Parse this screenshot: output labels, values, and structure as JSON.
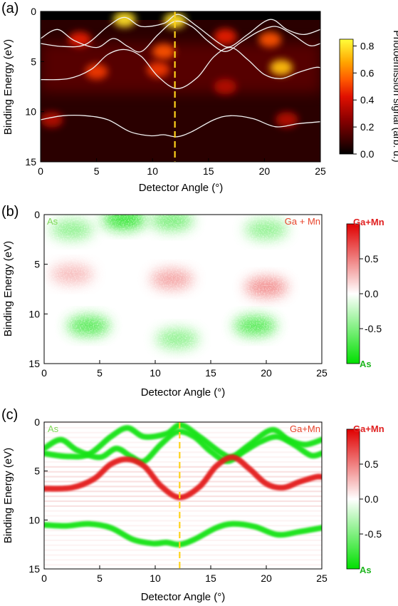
{
  "chart_data": [
    {
      "panel_label": "(a)",
      "type": "heatmap",
      "xlabel": "Detector Angle (°)",
      "ylabel": "Binding Energy (eV)",
      "xlim": [
        0,
        25
      ],
      "ylim": [
        15,
        0
      ],
      "x_ticks": [
        "0",
        "5",
        "10",
        "15",
        "20",
        "25"
      ],
      "y_ticks": [
        "0",
        "5",
        "10",
        "15"
      ],
      "colorbar": {
        "label": "Photoemission signal (arb. u.)",
        "ticks": [
          "0.0",
          "0.2",
          "0.4",
          "0.6",
          "0.8"
        ],
        "range": [
          0,
          0.85
        ],
        "colormap": [
          "#000000",
          "#3a0000",
          "#8b0000",
          "#e01000",
          "#ff5a00",
          "#ffa500",
          "#ffff3a"
        ]
      },
      "marker_angle": 12,
      "hotspots": [
        {
          "x": 7.5,
          "y": 0.8,
          "value": 0.8
        },
        {
          "x": 12.0,
          "y": 0.9,
          "value": 0.8
        },
        {
          "x": 11.0,
          "y": 4.0,
          "value": 0.55
        },
        {
          "x": 10.5,
          "y": 5.8,
          "value": 0.5
        },
        {
          "x": 5.0,
          "y": 6.0,
          "value": 0.5
        },
        {
          "x": 21.5,
          "y": 5.6,
          "value": 0.75
        },
        {
          "x": 20.5,
          "y": 2.8,
          "value": 0.55
        },
        {
          "x": 16.5,
          "y": 2.5,
          "value": 0.45
        },
        {
          "x": 3.5,
          "y": 2.8,
          "value": 0.45
        },
        {
          "x": 1.0,
          "y": 10.8,
          "value": 0.35
        },
        {
          "x": 22.0,
          "y": 10.8,
          "value": 0.35
        },
        {
          "x": 16.5,
          "y": 7.5,
          "value": 0.35
        }
      ],
      "bands": [
        {
          "x": [
            0,
            2,
            4,
            6,
            7.5,
            9,
            11,
            12.3,
            14,
            16,
            17,
            18.5,
            20.5,
            22,
            23.5,
            25
          ],
          "y": [
            3.2,
            3.5,
            3.3,
            1.5,
            0.6,
            1.5,
            1.2,
            0.3,
            1.5,
            3.2,
            3.5,
            2.3,
            0.8,
            1.8,
            2.3,
            1.8
          ]
        },
        {
          "x": [
            0,
            1.5,
            3,
            5,
            6.5,
            7.8,
            9,
            10.5,
            12,
            13.5,
            15,
            16.5,
            18,
            19.5,
            21,
            22.5,
            24,
            25
          ],
          "y": [
            2.7,
            1.8,
            2.9,
            3.6,
            2.7,
            3.5,
            4.0,
            2.3,
            1.0,
            1.5,
            3.0,
            4.0,
            3.0,
            2.0,
            1.5,
            2.3,
            3.4,
            3.2
          ]
        },
        {
          "x": [
            0,
            2.5,
            4.5,
            6,
            7.5,
            9,
            10.5,
            12.2,
            14,
            15.5,
            17,
            18.5,
            20,
            21.5,
            23,
            24.5,
            25
          ],
          "y": [
            6.8,
            6.7,
            5.8,
            4.3,
            3.8,
            4.5,
            6.5,
            7.7,
            6.6,
            4.5,
            3.6,
            4.8,
            6.3,
            6.7,
            6.1,
            5.6,
            5.6
          ]
        },
        {
          "x": [
            0,
            2,
            4,
            6,
            8,
            9.8,
            11,
            12.2,
            13.5,
            15.5,
            17,
            19,
            21,
            23,
            25
          ],
          "y": [
            10.8,
            10.4,
            10.4,
            10.8,
            12.0,
            12.4,
            12.3,
            12.5,
            12.0,
            10.8,
            10.4,
            10.7,
            11.5,
            11.2,
            11.0
          ]
        }
      ]
    },
    {
      "panel_label": "(b)",
      "type": "heatmap",
      "xlabel": "Detector Angle (°)",
      "ylabel": "Binding Energy (eV)",
      "xlim": [
        0,
        25
      ],
      "ylim": [
        15,
        0
      ],
      "x_ticks": [
        "0",
        "5",
        "10",
        "15",
        "20",
        "25"
      ],
      "y_ticks": [
        "0",
        "5",
        "10",
        "15"
      ],
      "label_left": "As",
      "label_right": "Ga + Mn",
      "colorbar": {
        "ticks": [
          "0.5",
          "0.0",
          "-0.5"
        ],
        "top_label": "Ga+Mn",
        "bottom_label": "As",
        "range": [
          -1,
          1
        ],
        "colormap": [
          "#00e000",
          "#ffffff",
          "#e00000"
        ]
      },
      "regions": [
        {
          "x": 7.2,
          "y": 0.5,
          "value": -0.9
        },
        {
          "x": 11.5,
          "y": 0.6,
          "value": -0.6
        },
        {
          "x": 2.5,
          "y": 1.5,
          "value": -0.5
        },
        {
          "x": 20.0,
          "y": 1.5,
          "value": -0.5
        },
        {
          "x": 4.0,
          "y": 11.2,
          "value": -0.75
        },
        {
          "x": 19.0,
          "y": 11.2,
          "value": -0.75
        },
        {
          "x": 12.0,
          "y": 12.5,
          "value": -0.5
        },
        {
          "x": 20.0,
          "y": 7.3,
          "value": 0.5
        },
        {
          "x": 11.5,
          "y": 6.5,
          "value": 0.4
        },
        {
          "x": 2.5,
          "y": 6.0,
          "value": 0.3
        }
      ]
    },
    {
      "panel_label": "(c)",
      "type": "heatmap",
      "xlabel": "Detector Angle (°)",
      "ylabel": "Binding Energy (eV)",
      "xlim": [
        0,
        25
      ],
      "ylim": [
        15,
        0
      ],
      "x_ticks": [
        "0",
        "5",
        "10",
        "15",
        "20",
        "25"
      ],
      "y_ticks": [
        "0",
        "5",
        "10",
        "15"
      ],
      "label_left": "As",
      "label_right": "Ga+Mn",
      "colorbar": {
        "ticks": [
          "0.5",
          "0.0",
          "-0.5"
        ],
        "top_label": "Ga+Mn",
        "bottom_label": "As",
        "range": [
          -1,
          1
        ],
        "colormap": [
          "#00e000",
          "#ffffff",
          "#e00000"
        ]
      },
      "marker_angle": 12.2,
      "bands": [
        {
          "value": -0.9,
          "x": [
            0,
            2,
            4,
            6,
            7.5,
            9,
            11,
            12.3,
            14,
            16,
            17,
            18.5,
            20.5,
            22,
            23.5,
            25
          ],
          "y": [
            3.2,
            3.5,
            3.3,
            1.5,
            0.6,
            1.5,
            1.2,
            0.3,
            1.5,
            3.2,
            3.5,
            2.3,
            0.8,
            1.8,
            2.3,
            1.8
          ]
        },
        {
          "value": -0.9,
          "x": [
            0,
            1.5,
            3,
            5,
            6.5,
            7.8,
            9,
            10.5,
            12,
            13.5,
            15,
            16.5,
            18,
            19.5,
            21,
            22.5,
            24,
            25
          ],
          "y": [
            2.7,
            1.8,
            2.9,
            3.6,
            2.7,
            3.5,
            4.0,
            2.3,
            1.0,
            1.5,
            3.0,
            4.0,
            3.0,
            2.0,
            1.5,
            2.3,
            3.4,
            3.2
          ]
        },
        {
          "value": 0.9,
          "x": [
            0,
            2.5,
            4.5,
            6,
            7.5,
            9,
            10.5,
            12.2,
            14,
            15.5,
            17,
            18.5,
            20,
            21.5,
            23,
            24.5,
            25
          ],
          "y": [
            6.8,
            6.7,
            5.8,
            4.3,
            3.8,
            4.5,
            6.5,
            7.7,
            6.6,
            4.5,
            3.6,
            4.8,
            6.3,
            6.7,
            6.1,
            5.6,
            5.6
          ]
        },
        {
          "value": -0.9,
          "x": [
            0,
            2,
            4,
            6,
            8,
            9.8,
            11,
            12.2,
            13.5,
            15.5,
            17,
            19,
            21,
            23,
            25
          ],
          "y": [
            10.5,
            10.6,
            10.4,
            10.8,
            12.0,
            12.4,
            12.3,
            12.5,
            12.0,
            10.8,
            10.4,
            10.7,
            11.5,
            11.2,
            10.8
          ]
        }
      ]
    }
  ]
}
